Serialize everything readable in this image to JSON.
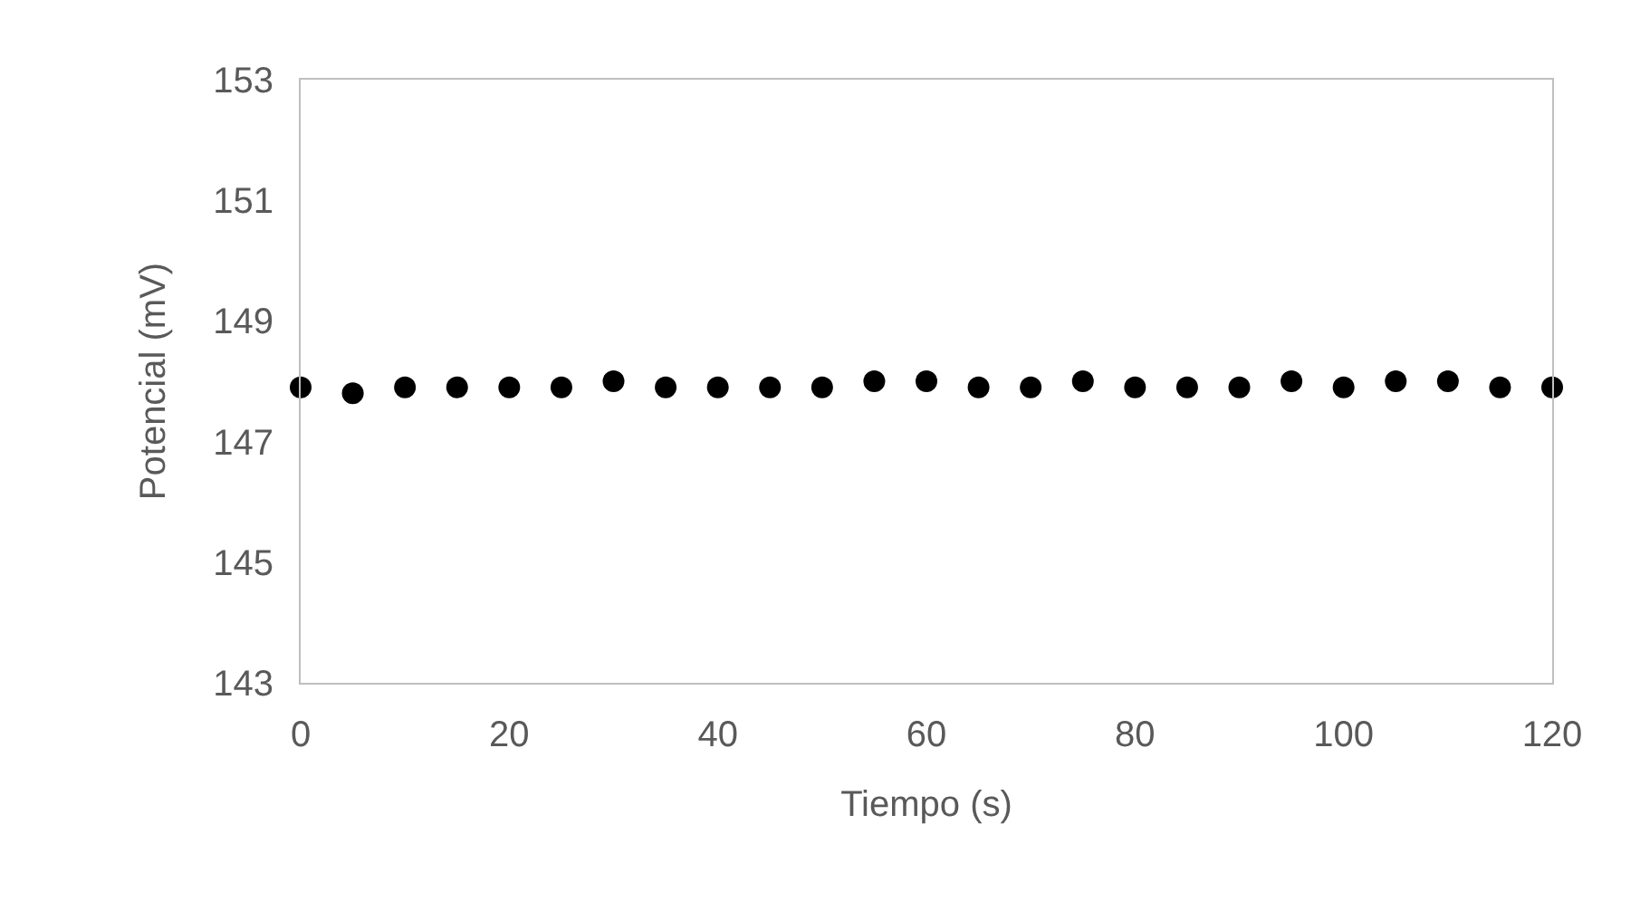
{
  "chart_data": {
    "type": "scatter",
    "xlabel": "Tiempo (s)",
    "ylabel": "Potencial (mV)",
    "x": [
      0,
      5,
      10,
      15,
      20,
      25,
      30,
      35,
      40,
      45,
      50,
      55,
      60,
      65,
      70,
      75,
      80,
      85,
      90,
      95,
      100,
      105,
      110,
      115,
      120
    ],
    "series": [
      {
        "color": "#000000",
        "values": [
          147.9,
          147.8,
          147.9,
          147.9,
          147.9,
          147.9,
          148.0,
          147.9,
          147.9,
          147.9,
          147.9,
          148.0,
          148.0,
          147.9,
          147.9,
          148.0,
          147.9,
          147.9,
          147.9,
          148.0,
          147.9,
          148.0,
          148.0,
          147.9,
          147.9
        ]
      }
    ],
    "xlim": [
      0,
      120
    ],
    "xticks": [
      0,
      20,
      40,
      60,
      80,
      100,
      120
    ],
    "ylim": [
      143,
      153
    ],
    "yticks": [
      143,
      145,
      147,
      149,
      151,
      153
    ],
    "grid": false,
    "marker": "circle"
  }
}
